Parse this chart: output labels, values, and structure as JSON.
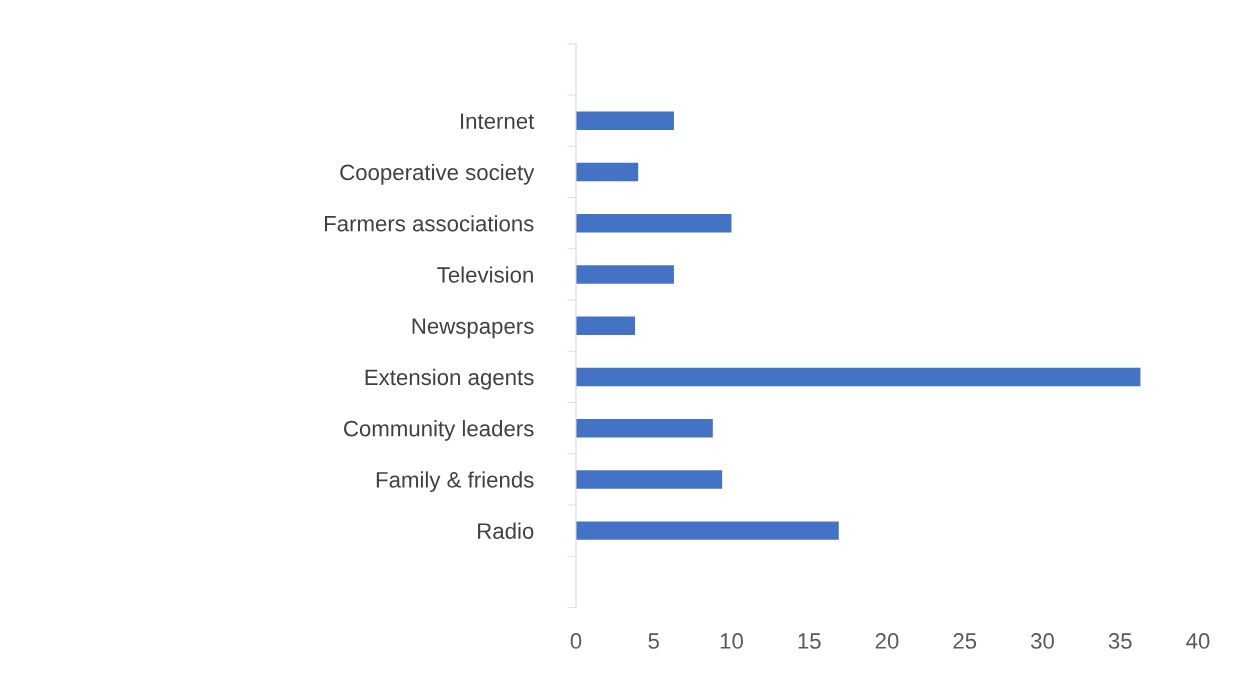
{
  "chart_data": {
    "type": "bar",
    "orientation": "horizontal",
    "categories": [
      null,
      "Internet",
      "Cooperative society",
      "Farmers associations",
      "Television",
      "Newspapers",
      "Extension agents",
      "Community leaders",
      "Family & friends",
      "Radio",
      null
    ],
    "values": [
      null,
      6.3,
      4.0,
      10.0,
      6.3,
      3.8,
      36.3,
      8.8,
      9.4,
      16.9,
      null
    ],
    "color": "#4472c4",
    "xlim": [
      0,
      40
    ],
    "xticks": [
      0,
      5,
      10,
      15,
      20,
      25,
      30,
      35,
      40
    ],
    "grid": false,
    "legend": false
  }
}
